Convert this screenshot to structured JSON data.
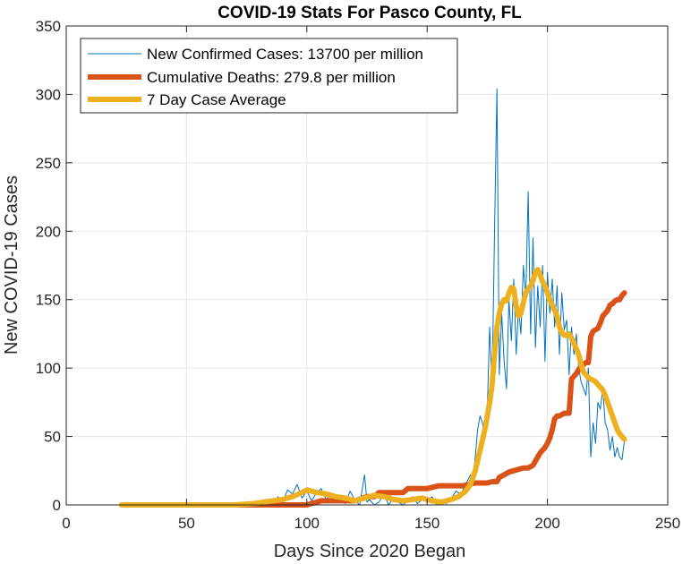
{
  "chart_data": {
    "type": "line",
    "title": "COVID-19 Stats For Pasco County, FL",
    "xlabel": "Days Since 2020 Began",
    "ylabel": "New COVID-19 Cases",
    "xlim": [
      0,
      250
    ],
    "ylim": [
      0,
      350
    ],
    "xticks": [
      0,
      50,
      100,
      150,
      200,
      250
    ],
    "yticks": [
      0,
      50,
      100,
      150,
      200,
      250,
      300,
      350
    ],
    "grid": true,
    "legend_position": "top-left",
    "series": [
      {
        "name": "New Confirmed Cases: 13700 per million",
        "color": "#0072BD",
        "linewidth": "thin",
        "x": [
          23,
          60,
          80,
          84,
          86,
          88,
          90,
          92,
          94,
          96,
          98,
          100,
          102,
          104,
          106,
          108,
          110,
          112,
          114,
          116,
          118,
          120,
          122,
          124,
          125,
          126,
          128,
          130,
          132,
          134,
          136,
          138,
          140,
          142,
          144,
          146,
          148,
          150,
          152,
          154,
          156,
          158,
          160,
          162,
          164,
          166,
          168,
          169,
          170,
          171,
          172,
          173,
          174,
          175,
          176,
          177,
          178,
          179,
          180,
          181,
          182,
          183,
          184,
          185,
          186,
          187,
          188,
          189,
          190,
          191,
          192,
          193,
          194,
          195,
          196,
          197,
          198,
          199,
          200,
          201,
          202,
          203,
          204,
          205,
          206,
          207,
          208,
          209,
          210,
          211,
          212,
          213,
          214,
          215,
          216,
          217,
          218,
          219,
          220,
          221,
          222,
          223,
          224,
          225,
          226,
          227,
          228,
          229,
          230,
          231,
          232
        ],
        "y": [
          0,
          0,
          1,
          3,
          0,
          6,
          2,
          11,
          8,
          15,
          5,
          10,
          3,
          9,
          12,
          4,
          8,
          2,
          5,
          1,
          10,
          3,
          0,
          22,
          2,
          4,
          0,
          2,
          8,
          0,
          5,
          2,
          0,
          3,
          6,
          1,
          4,
          2,
          6,
          0,
          3,
          1,
          5,
          10,
          8,
          15,
          22,
          19,
          35,
          55,
          65,
          60,
          48,
          70,
          130,
          85,
          200,
          304,
          95,
          140,
          105,
          85,
          150,
          120,
          165,
          110,
          145,
          125,
          175,
          150,
          229,
          125,
          195,
          115,
          160,
          130,
          175,
          105,
          170,
          140,
          165,
          130,
          160,
          110,
          155,
          128,
          135,
          95,
          130,
          110,
          125,
          100,
          90,
          85,
          80,
          100,
          35,
          60,
          45,
          75,
          70,
          85,
          60,
          55,
          40,
          50,
          35,
          42,
          35,
          33,
          47
        ]
      },
      {
        "name": "Cumulative Deaths: 279.8 per million",
        "color": "#D95319",
        "linewidth": "thick",
        "x": [
          23,
          80,
          100,
          106,
          108,
          120,
          125,
          128,
          130,
          132,
          140,
          142,
          150,
          155,
          160,
          165,
          170,
          175,
          177,
          179,
          180,
          182,
          184,
          186,
          188,
          190,
          192,
          194,
          196,
          197,
          198,
          199,
          200,
          201,
          202,
          203,
          204,
          205,
          206,
          207,
          208,
          209,
          210,
          211,
          212,
          213,
          214,
          216,
          217,
          218,
          219,
          220,
          221,
          222,
          223,
          224,
          225,
          226,
          227,
          228,
          229,
          230,
          231,
          232
        ],
        "y": [
          0,
          0,
          0,
          3,
          3,
          3,
          6,
          6,
          9,
          9,
          9,
          12,
          12,
          14,
          14,
          14,
          16,
          16,
          17,
          17,
          20,
          22,
          24,
          25,
          26,
          27,
          27,
          29,
          35,
          38,
          40,
          42,
          45,
          49,
          55,
          63,
          65,
          65,
          66,
          67,
          67,
          67,
          92,
          94,
          96,
          99,
          101,
          104,
          104,
          123,
          127,
          128,
          129,
          133,
          138,
          140,
          142,
          146,
          147,
          149,
          150,
          150,
          153,
          155
        ]
      },
      {
        "name": "7 Day Case Average",
        "color": "#EDB120",
        "linewidth": "thick",
        "x": [
          23,
          70,
          78,
          82,
          86,
          90,
          94,
          98,
          100,
          104,
          108,
          112,
          116,
          120,
          124,
          128,
          132,
          136,
          140,
          144,
          148,
          152,
          156,
          160,
          163,
          166,
          168,
          170,
          172,
          174,
          175,
          176,
          177,
          178,
          179,
          180,
          181,
          182,
          183,
          184,
          185,
          186,
          187,
          188,
          189,
          190,
          191,
          192,
          193,
          194,
          195,
          196,
          197,
          198,
          199,
          200,
          201,
          202,
          203,
          204,
          205,
          206,
          207,
          208,
          209,
          210,
          211,
          212,
          213,
          214,
          215,
          216,
          217,
          218,
          219,
          220,
          221,
          222,
          223,
          224,
          225,
          226,
          227,
          228,
          229,
          230,
          231,
          232
        ],
        "y": [
          0,
          0,
          1,
          2,
          3,
          4,
          6,
          9,
          11,
          9,
          8,
          6,
          5,
          3,
          5,
          7,
          6,
          4,
          3,
          4,
          5,
          3,
          2,
          4,
          6,
          10,
          15,
          25,
          40,
          55,
          65,
          75,
          88,
          110,
          130,
          140,
          147,
          150,
          149,
          155,
          159,
          158,
          145,
          138,
          140,
          148,
          155,
          158,
          160,
          164,
          170,
          172,
          168,
          163,
          160,
          155,
          150,
          146,
          142,
          138,
          130,
          126,
          124,
          124,
          125,
          122,
          118,
          114,
          110,
          103,
          97,
          95,
          93,
          92,
          91,
          90,
          88,
          86,
          84,
          80,
          75,
          70,
          65,
          60,
          55,
          52,
          50,
          48
        ]
      }
    ]
  }
}
